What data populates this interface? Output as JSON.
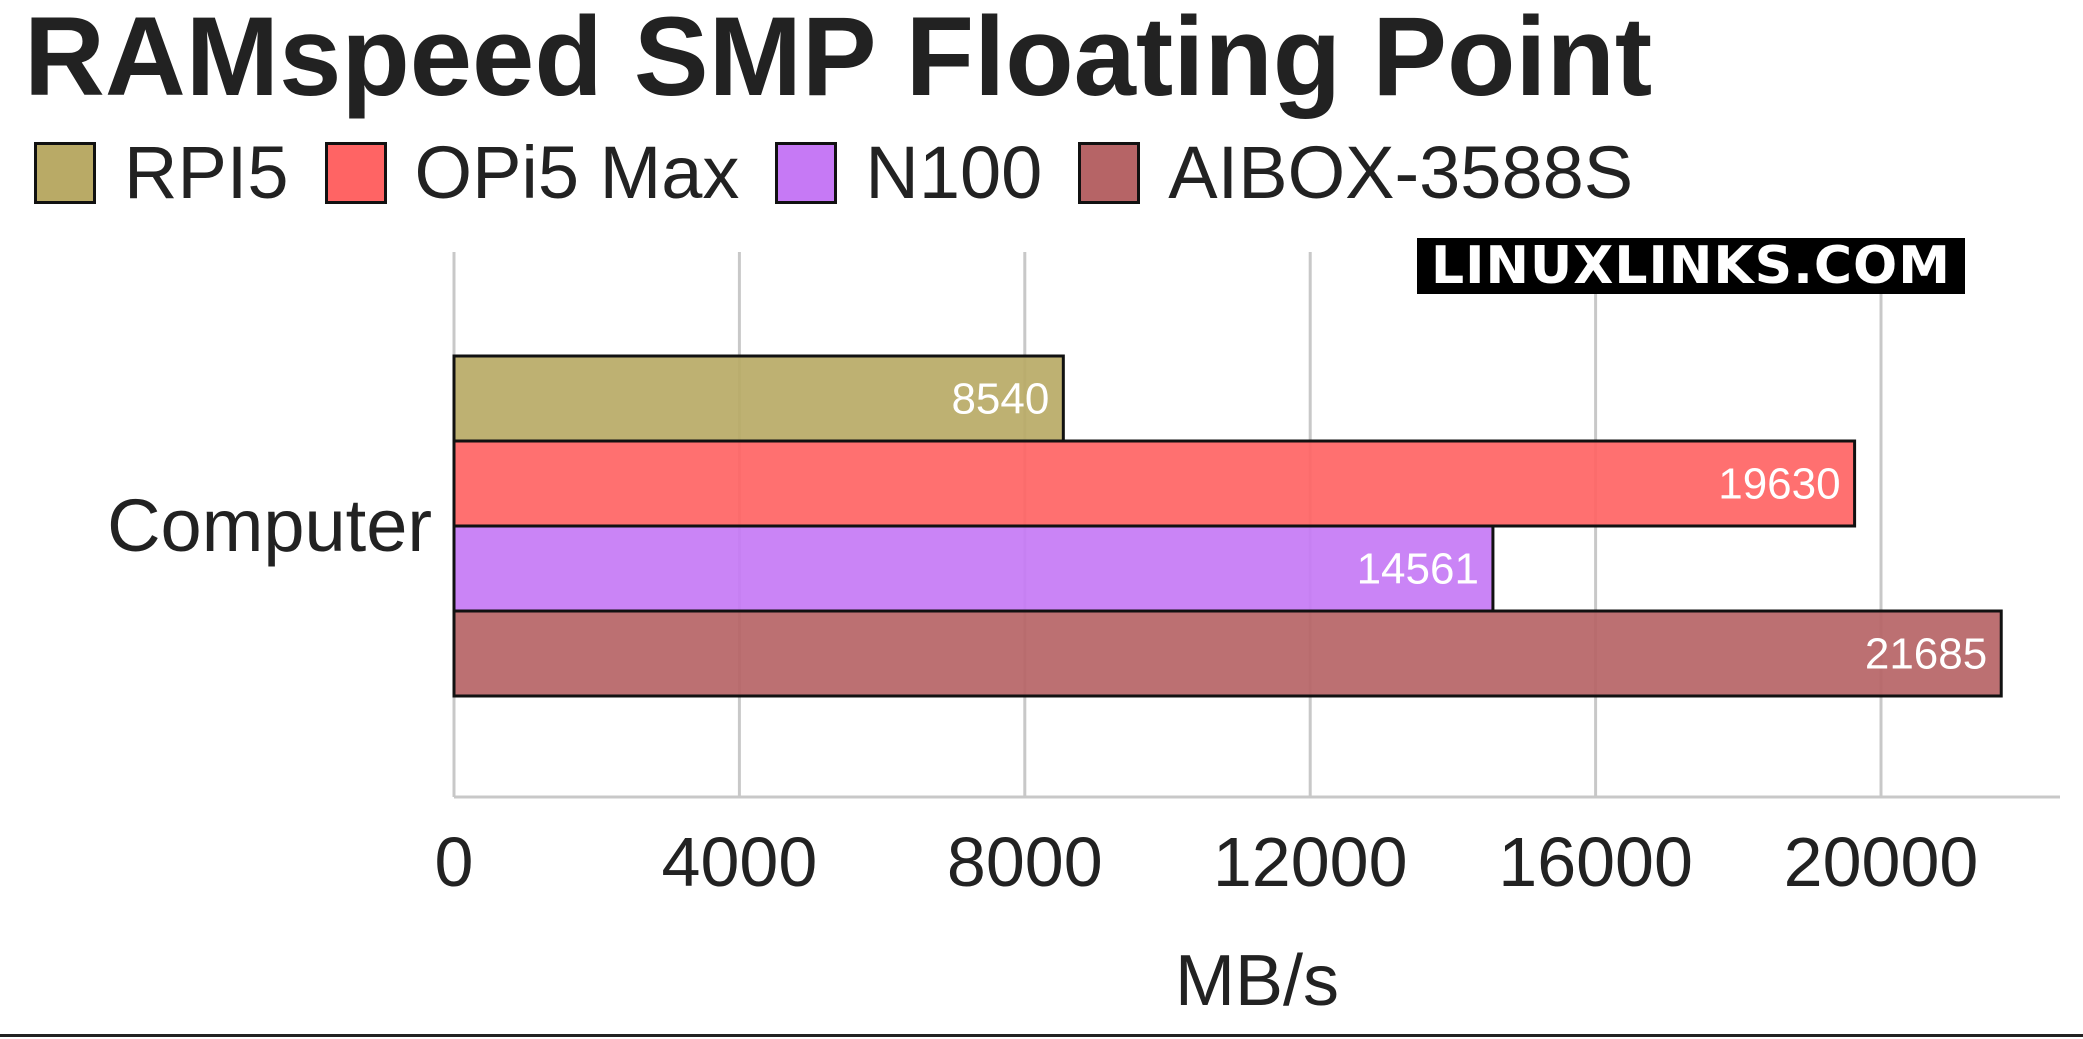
{
  "watermark": "LINUXLINKS.COM",
  "chart_data": {
    "type": "bar",
    "orientation": "horizontal",
    "title": "RAMspeed SMP Floating Point",
    "categories": [
      "Computer"
    ],
    "series": [
      {
        "name": "RPI5",
        "values": [
          8540
        ],
        "color": "#b9aa66"
      },
      {
        "name": "OPi5 Max",
        "values": [
          19630
        ],
        "color": "#ff6464"
      },
      {
        "name": "N100",
        "values": [
          14561
        ],
        "color": "#c679f5"
      },
      {
        "name": "AIBOX-3588S",
        "values": [
          21685
        ],
        "color": "#b66466"
      }
    ],
    "xlabel": "MB/s",
    "ylabel": "",
    "xlim": [
      0,
      22500
    ],
    "xticks": [
      0,
      4000,
      8000,
      12000,
      16000,
      20000
    ],
    "grid": true,
    "legend_position": "top-left",
    "data_labels": true
  }
}
